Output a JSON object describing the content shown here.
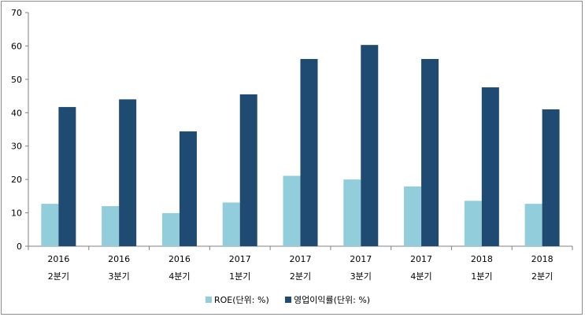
{
  "chart_data": {
    "type": "bar",
    "categories": [
      [
        "2016",
        "2분기"
      ],
      [
        "2016",
        "3분기"
      ],
      [
        "2016",
        "4분기"
      ],
      [
        "2017",
        "1분기"
      ],
      [
        "2017",
        "2분기"
      ],
      [
        "2017",
        "3분기"
      ],
      [
        "2017",
        "4분기"
      ],
      [
        "2018",
        "1분기"
      ],
      [
        "2018",
        "2분기"
      ]
    ],
    "series": [
      {
        "name": "ROE(단위: %)",
        "color": "#92cddc",
        "values": [
          12.7,
          12.0,
          9.9,
          13.1,
          21.1,
          20.0,
          17.9,
          13.6,
          12.7
        ]
      },
      {
        "name": "영업이익률(단위: %)",
        "color": "#1f4a72",
        "values": [
          41.7,
          44.0,
          34.4,
          45.5,
          56.1,
          60.3,
          56.1,
          47.6,
          41.0
        ]
      }
    ],
    "yticks": [
      "0",
      "10",
      "20",
      "30",
      "40",
      "50",
      "60",
      "70"
    ],
    "ylim": [
      0,
      70
    ],
    "grid": false,
    "legend_position": "bottom"
  }
}
